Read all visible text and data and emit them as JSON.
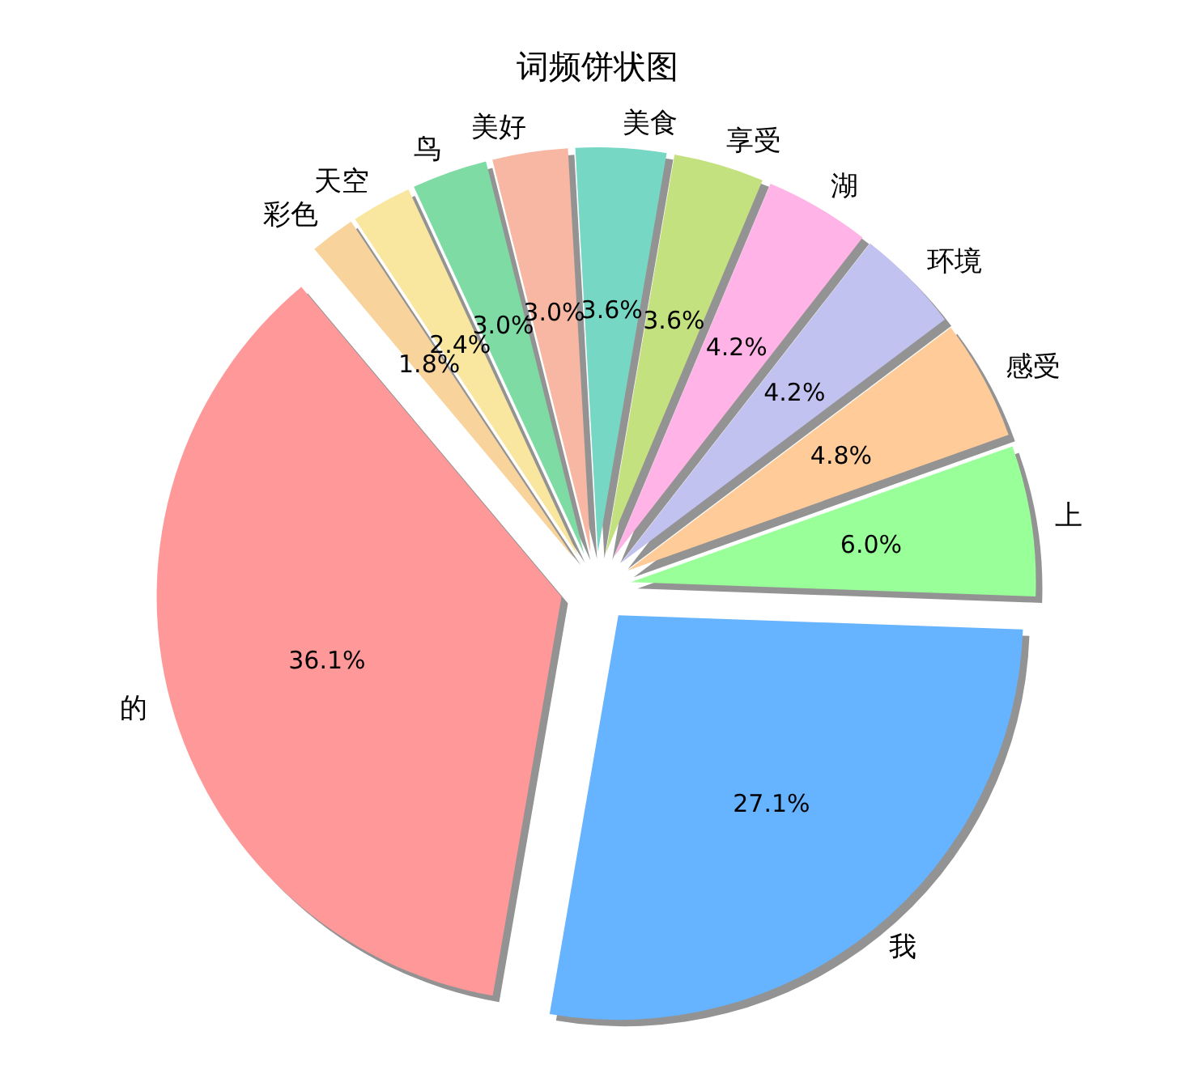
{
  "chart_data": {
    "type": "pie",
    "title": "词频饼状图",
    "categories": [
      "的",
      "我",
      "上",
      "感受",
      "环境",
      "湖",
      "享受",
      "美食",
      "美好",
      "鸟",
      "天空",
      "彩色"
    ],
    "values": [
      36.1,
      27.1,
      6.0,
      4.8,
      4.2,
      4.2,
      3.6,
      3.6,
      3.0,
      3.0,
      2.4,
      1.8
    ],
    "colors": [
      "#ff9999",
      "#66b3ff",
      "#99ff99",
      "#ffcc99",
      "#c2c2f0",
      "#ffb3e6",
      "#c4e17f",
      "#76d7c4",
      "#f7b7a3",
      "#7fdba4",
      "#f9e79f",
      "#f8d49c"
    ],
    "value_labels": [
      "36.1%",
      "27.1%",
      "6.0%",
      "4.8%",
      "4.2%",
      "4.2%",
      "3.6%",
      "3.6%",
      "3.0%",
      "3.0%",
      "2.4%",
      "1.8%"
    ],
    "legend": false
  }
}
